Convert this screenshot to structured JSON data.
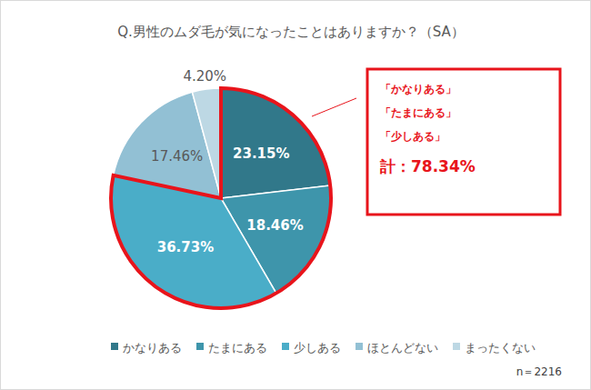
{
  "chart_data": {
    "type": "pie",
    "title": "Q.男性のムダ毛が気になったことはありますか？（SA）",
    "categories": [
      "かなりある",
      "たまにある",
      "少しある",
      "ほとんどない",
      "まったくない"
    ],
    "values": [
      23.15,
      18.46,
      36.73,
      17.46,
      4.2
    ],
    "value_labels": [
      "23.15%",
      "18.46%",
      "36.73%",
      "17.46%",
      "4.20%"
    ],
    "colors": [
      "#31788a",
      "#3e95ab",
      "#4aadc8",
      "#92c0d4",
      "#bdd8e4"
    ],
    "data_labels": true,
    "legend": "bottom",
    "annotations": [
      "「かなりある」",
      "「たまにある」",
      "「少しある」",
      "計：78.34%"
    ],
    "note": "n＝2216"
  }
}
